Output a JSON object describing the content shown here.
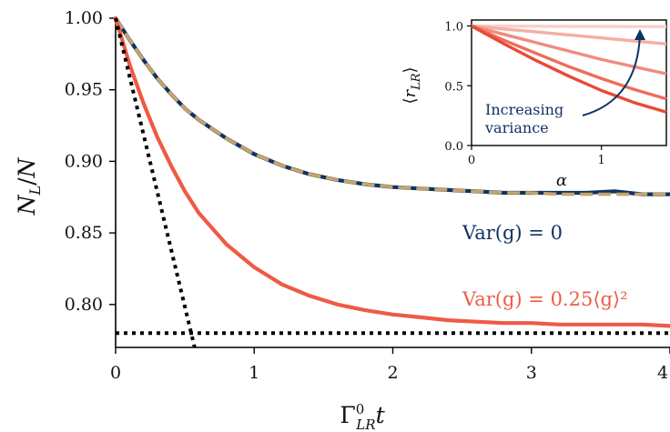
{
  "chart_data": [
    {
      "type": "line",
      "xlabel": "Γ⁰_LR t",
      "ylabel": "N_L / N",
      "xlim": [
        0,
        4
      ],
      "ylim": [
        0.77,
        1.0
      ],
      "x_ticks": [
        0,
        1,
        2,
        3,
        4
      ],
      "y_ticks": [
        0.8,
        0.85,
        0.9,
        0.95,
        1.0
      ],
      "x_tick_labels": [
        "0",
        "1",
        "2",
        "3",
        "4"
      ],
      "y_tick_labels": [
        "0.80",
        "0.85",
        "0.90",
        "0.95",
        "1.00"
      ],
      "grid": false,
      "series": [
        {
          "color": "#0f3361",
          "style": "solid",
          "x": [
            0,
            0.1,
            0.2,
            0.3,
            0.4,
            0.5,
            0.6,
            0.8,
            1.0,
            1.2,
            1.4,
            1.6,
            1.8,
            2.0,
            2.2,
            2.4,
            2.6,
            2.8,
            3.0,
            3.2,
            3.4,
            3.6,
            3.8,
            4.0
          ],
          "y": [
            1.0,
            0.985,
            0.971,
            0.958,
            0.947,
            0.937,
            0.929,
            0.916,
            0.905,
            0.897,
            0.891,
            0.887,
            0.884,
            0.882,
            0.881,
            0.88,
            0.879,
            0.878,
            0.878,
            0.878,
            0.878,
            0.879,
            0.877,
            0.877
          ]
        },
        {
          "color": "#c9a36a",
          "style": "dashed",
          "x": [
            0,
            0.1,
            0.2,
            0.3,
            0.4,
            0.5,
            0.6,
            0.8,
            1.0,
            1.2,
            1.4,
            1.6,
            1.8,
            2.0,
            2.2,
            2.4,
            2.6,
            2.8,
            3.0,
            3.2,
            3.4,
            3.6,
            3.8,
            4.0
          ],
          "y": [
            1.0,
            0.985,
            0.971,
            0.958,
            0.947,
            0.937,
            0.929,
            0.916,
            0.905,
            0.897,
            0.891,
            0.887,
            0.884,
            0.882,
            0.881,
            0.88,
            0.879,
            0.878,
            0.878,
            0.877,
            0.877,
            0.877,
            0.877,
            0.877
          ]
        },
        {
          "color": "#ef5a45",
          "style": "solid",
          "x": [
            0,
            0.1,
            0.2,
            0.3,
            0.4,
            0.5,
            0.6,
            0.8,
            1.0,
            1.2,
            1.4,
            1.6,
            1.8,
            2.0,
            2.2,
            2.4,
            2.6,
            2.8,
            3.0,
            3.2,
            3.4,
            3.6,
            3.8,
            4.0
          ],
          "y": [
            1.0,
            0.968,
            0.941,
            0.917,
            0.897,
            0.879,
            0.864,
            0.842,
            0.826,
            0.814,
            0.806,
            0.8,
            0.796,
            0.793,
            0.791,
            0.789,
            0.788,
            0.787,
            0.787,
            0.786,
            0.786,
            0.786,
            0.786,
            0.785
          ]
        },
        {
          "color": "#000000",
          "style": "dotted",
          "x": [
            0,
            0.57
          ],
          "y": [
            1.0,
            0.77
          ]
        },
        {
          "color": "#000000",
          "style": "dotted",
          "x": [
            0,
            4
          ],
          "y": [
            0.78,
            0.78
          ]
        }
      ],
      "annotations": [
        {
          "text": "Var(g) = 0",
          "color": "#0f3361"
        },
        {
          "text": "Var(g) = 0.25⟨g⟩²",
          "color": "#ef5a45"
        }
      ]
    },
    {
      "type": "line",
      "role": "inset",
      "xlabel": "α",
      "ylabel": "⟨r_LR⟩",
      "xlim": [
        0,
        1.5
      ],
      "ylim": [
        0,
        1.05
      ],
      "x_ticks": [
        0,
        1
      ],
      "y_ticks": [
        0.0,
        0.5,
        1.0
      ],
      "x_tick_labels": [
        "0",
        "1"
      ],
      "y_tick_labels": [
        "0.0",
        "0.5",
        "1.0"
      ],
      "grid": false,
      "series": [
        {
          "color": "#fad0ca",
          "x": [
            0,
            0.25,
            0.5,
            0.75,
            1.0,
            1.25,
            1.5
          ],
          "y": [
            1.0,
            0.999,
            0.998,
            0.997,
            0.996,
            0.995,
            0.995
          ]
        },
        {
          "color": "#f6aea4",
          "x": [
            0,
            0.25,
            0.5,
            0.75,
            1.0,
            1.25,
            1.5
          ],
          "y": [
            1.0,
            0.975,
            0.95,
            0.925,
            0.9,
            0.875,
            0.85
          ]
        },
        {
          "color": "#f28b7d",
          "x": [
            0,
            0.25,
            0.5,
            0.75,
            1.0,
            1.25,
            1.5
          ],
          "y": [
            1.0,
            0.93,
            0.86,
            0.79,
            0.72,
            0.66,
            0.6
          ]
        },
        {
          "color": "#ee6d5c",
          "x": [
            0,
            0.25,
            0.5,
            0.75,
            1.0,
            1.25,
            1.5
          ],
          "y": [
            1.0,
            0.88,
            0.77,
            0.66,
            0.56,
            0.47,
            0.39
          ]
        },
        {
          "color": "#e84a35",
          "x": [
            0,
            0.25,
            0.5,
            0.75,
            1.0,
            1.25,
            1.5
          ],
          "y": [
            1.0,
            0.85,
            0.71,
            0.58,
            0.46,
            0.36,
            0.28
          ]
        }
      ],
      "annotations": [
        {
          "text": "Increasing",
          "color": "#0f3361"
        },
        {
          "text": "variance",
          "color": "#0f3361"
        }
      ],
      "arrow_color": "#0f3361"
    }
  ]
}
